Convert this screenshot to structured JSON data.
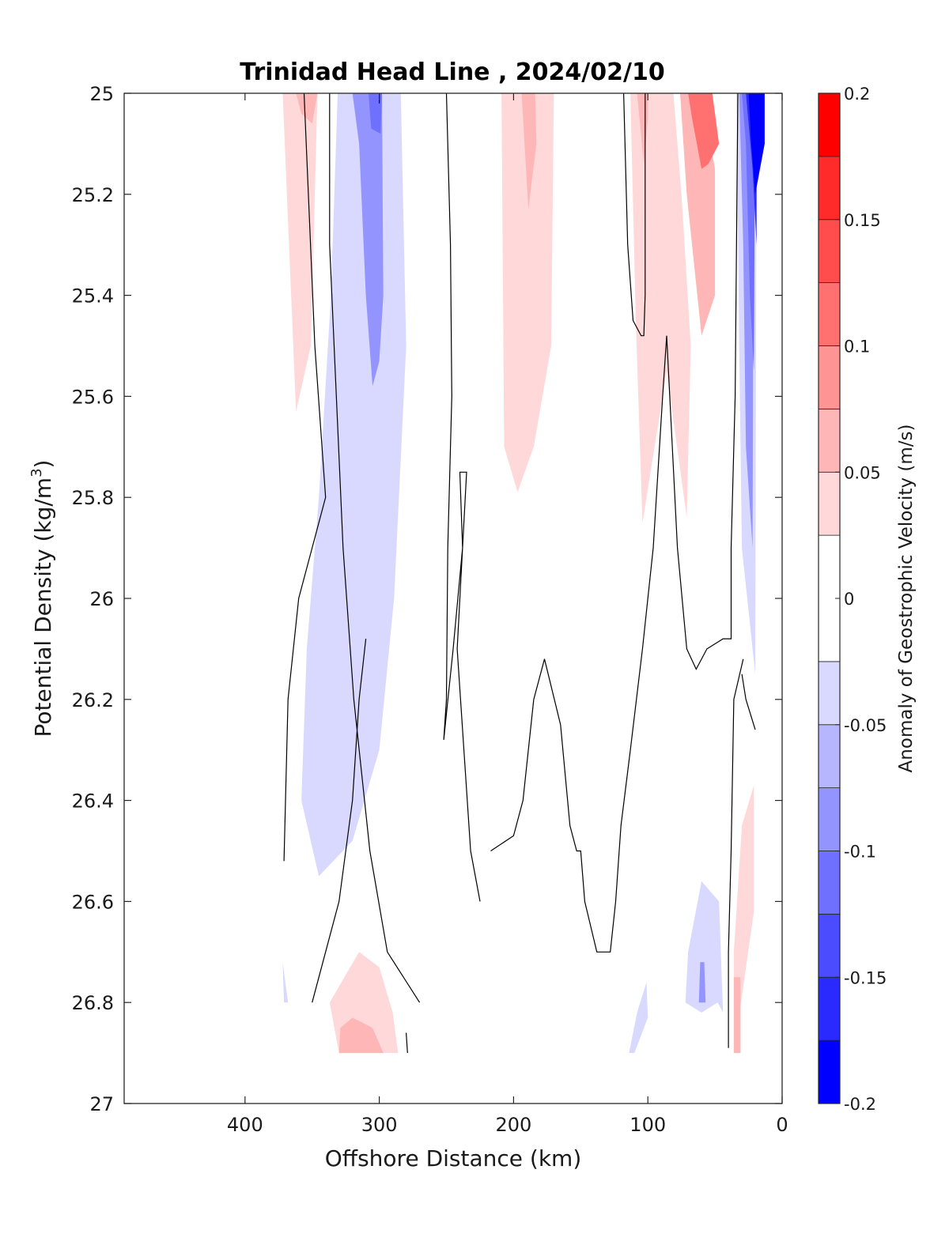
{
  "chart_data": {
    "type": "heatmap",
    "subtype": "filled-contour-section",
    "title": "Trinidad Head Line , 2024/02/10",
    "xlabel": "Offshore Distance (km)",
    "ylabel_main": "Potential Density (kg/m",
    "ylabel_sup": "3",
    "ylabel_close": ")",
    "x_reversed": true,
    "y_reversed": true,
    "xlim": [
      490,
      0
    ],
    "ylim": [
      25,
      27
    ],
    "x_ticks": [
      400,
      300,
      200,
      100,
      0
    ],
    "y_ticks": [
      25,
      25.2,
      25.4,
      25.6,
      25.8,
      26,
      26.2,
      26.4,
      26.6,
      26.8,
      27
    ],
    "y_tick_labels": [
      "25",
      "25.2",
      "25.4",
      "25.6",
      "25.8",
      "26",
      "26.2",
      "26.4",
      "26.6",
      "26.8",
      "27"
    ],
    "colorbar": {
      "label": "Anomaly of Geostrophic Velocity (m/s)",
      "range": [
        -0.2,
        0.2
      ],
      "levels": [
        -0.2,
        -0.175,
        -0.15,
        -0.125,
        -0.1,
        -0.075,
        -0.05,
        -0.025,
        0.025,
        0.05,
        0.075,
        0.1,
        0.125,
        0.15,
        0.175,
        0.2
      ],
      "colors": [
        "#0000ff",
        "#2a2aff",
        "#4c4cff",
        "#7070ff",
        "#9494ff",
        "#b6b6ff",
        "#d9d9ff",
        "#ffffff",
        "#ffd9d9",
        "#ffb6b6",
        "#ff9494",
        "#ff7070",
        "#ff4c4c",
        "#ff2a2a",
        "#ff0000"
      ],
      "ticks": [
        0.2,
        0.15,
        0.1,
        0.05,
        0,
        -0.05,
        -0.1,
        -0.15,
        -0.2
      ],
      "tick_labels": [
        "0.2",
        "0.15",
        "0.1",
        "0.05",
        "0",
        "-0.05",
        "-0.1",
        "-0.15",
        "-0.2"
      ]
    },
    "regions": [
      {
        "value": 0.04,
        "points": [
          [
            372,
            25
          ],
          [
            346,
            25
          ],
          [
            351,
            25.5
          ],
          [
            362,
            25.63
          ]
        ]
      },
      {
        "value": 0.07,
        "points": [
          [
            362,
            25
          ],
          [
            346,
            25
          ],
          [
            350,
            25.06
          ],
          [
            358,
            25.04
          ]
        ]
      },
      {
        "value": -0.04,
        "points": [
          [
            331,
            25
          ],
          [
            284,
            25
          ],
          [
            280,
            25.5
          ],
          [
            289,
            26
          ],
          [
            300,
            26.3
          ],
          [
            320,
            26.48
          ],
          [
            345,
            26.55
          ],
          [
            358,
            26.4
          ],
          [
            354,
            26.1
          ],
          [
            345,
            25.8
          ],
          [
            336,
            25.4
          ]
        ]
      },
      {
        "value": -0.08,
        "points": [
          [
            320,
            25
          ],
          [
            298,
            25
          ],
          [
            297,
            25.4
          ],
          [
            300,
            25.53
          ],
          [
            305,
            25.58
          ],
          [
            310,
            25.4
          ],
          [
            315,
            25.1
          ]
        ]
      },
      {
        "value": -0.11,
        "points": [
          [
            308,
            25
          ],
          [
            298,
            25
          ],
          [
            299,
            25.08
          ],
          [
            306,
            25.07
          ]
        ]
      },
      {
        "value": 0.04,
        "points": [
          [
            209,
            25
          ],
          [
            170,
            25
          ],
          [
            172,
            25.5
          ],
          [
            185,
            25.7
          ],
          [
            197,
            25.79
          ],
          [
            207,
            25.7
          ]
        ]
      },
      {
        "value": 0.07,
        "points": [
          [
            194,
            25
          ],
          [
            184,
            25
          ],
          [
            183,
            25.1
          ],
          [
            189,
            25.23
          ]
        ]
      },
      {
        "value": 0.04,
        "points": [
          [
            113,
            25
          ],
          [
            81,
            25
          ],
          [
            75,
            25.2
          ],
          [
            68,
            25.5
          ],
          [
            71,
            25.84
          ],
          [
            86,
            25.55
          ],
          [
            104,
            25.85
          ],
          [
            109,
            25.45
          ]
        ]
      },
      {
        "value": 0.07,
        "points": [
          [
            108,
            25
          ],
          [
            100,
            25
          ],
          [
            100,
            25.05
          ],
          [
            103,
            25.14
          ]
        ]
      },
      {
        "value": 0.07,
        "points": [
          [
            76,
            25
          ],
          [
            60,
            25
          ],
          [
            50,
            25.15
          ],
          [
            50,
            25.4
          ],
          [
            60,
            25.48
          ],
          [
            71,
            25.2
          ]
        ]
      },
      {
        "value": 0.1,
        "points": [
          [
            70,
            25
          ],
          [
            52,
            25
          ],
          [
            47,
            25.1
          ],
          [
            55,
            25.14
          ],
          [
            60,
            25.15
          ],
          [
            67,
            25.05
          ]
        ]
      },
      {
        "value": -0.04,
        "points": [
          [
            34,
            25
          ],
          [
            19,
            25
          ],
          [
            20,
            26.15
          ],
          [
            30,
            25.9
          ],
          [
            32,
            25.5
          ]
        ]
      },
      {
        "value": -0.08,
        "points": [
          [
            32,
            25
          ],
          [
            21,
            25
          ],
          [
            22,
            25.9
          ],
          [
            27,
            25.7
          ],
          [
            29,
            25.3
          ]
        ]
      },
      {
        "value": -0.12,
        "points": [
          [
            30,
            25
          ],
          [
            20,
            25
          ],
          [
            21,
            25.55
          ],
          [
            24,
            25.4
          ],
          [
            27,
            25.1
          ]
        ]
      },
      {
        "value": -0.16,
        "points": [
          [
            27,
            25
          ],
          [
            19,
            25
          ],
          [
            19,
            25.3
          ],
          [
            22,
            25.15
          ]
        ]
      },
      {
        "value": -0.19,
        "points": [
          [
            25,
            25
          ],
          [
            13,
            25
          ],
          [
            13,
            25.1
          ],
          [
            20,
            25.2
          ],
          [
            23,
            25.1
          ]
        ]
      },
      {
        "value": 0.04,
        "points": [
          [
            337,
            26.8
          ],
          [
            315,
            26.7
          ],
          [
            300,
            26.73
          ],
          [
            290,
            26.82
          ],
          [
            286,
            26.9
          ],
          [
            330,
            26.9
          ]
        ]
      },
      {
        "value": 0.07,
        "points": [
          [
            329,
            26.85
          ],
          [
            320,
            26.83
          ],
          [
            305,
            26.85
          ],
          [
            297,
            26.9
          ],
          [
            330,
            26.9
          ]
        ]
      },
      {
        "value": -0.04,
        "points": [
          [
            372,
            26.72
          ],
          [
            368,
            26.8
          ],
          [
            371,
            26.8
          ]
        ]
      },
      {
        "value": -0.04,
        "points": [
          [
            114,
            26.9
          ],
          [
            110,
            26.9
          ],
          [
            100,
            26.83
          ],
          [
            101,
            26.76
          ],
          [
            108,
            26.82
          ]
        ]
      },
      {
        "value": -0.04,
        "points": [
          [
            60,
            26.56
          ],
          [
            47,
            26.6
          ],
          [
            44,
            26.82
          ],
          [
            48,
            26.8
          ],
          [
            60,
            26.82
          ],
          [
            72,
            26.8
          ],
          [
            70,
            26.7
          ]
        ]
      },
      {
        "value": -0.08,
        "points": [
          [
            62,
            26.8
          ],
          [
            57,
            26.8
          ],
          [
            58,
            26.72
          ],
          [
            61,
            26.72
          ]
        ]
      },
      {
        "value": 0.04,
        "points": [
          [
            21,
            26.37
          ],
          [
            30,
            26.45
          ],
          [
            36,
            26.7
          ],
          [
            36,
            26.9
          ],
          [
            21,
            26.62
          ]
        ]
      },
      {
        "value": 0.07,
        "points": [
          [
            36,
            26.75
          ],
          [
            36,
            26.9
          ],
          [
            31,
            26.9
          ],
          [
            31,
            26.75
          ]
        ]
      }
    ],
    "zero_contours": [
      [
        [
          337,
          25
        ],
        [
          337,
          25.3
        ],
        [
          332,
          25.6
        ],
        [
          327,
          25.9
        ],
        [
          319,
          26.2
        ],
        [
          307,
          26.5
        ],
        [
          294,
          26.7
        ],
        [
          270,
          26.8
        ]
      ],
      [
        [
          356,
          25
        ],
        [
          348,
          25.5
        ],
        [
          340,
          25.8
        ],
        [
          350,
          25.9
        ],
        [
          360,
          26
        ],
        [
          368,
          26.2
        ],
        [
          371,
          26.52
        ]
      ],
      [
        [
          300,
          25
        ],
        [
          300,
          25.02
        ]
      ],
      [
        [
          250,
          25
        ],
        [
          247,
          25.3
        ],
        [
          246,
          25.6
        ],
        [
          249,
          25.9
        ],
        [
          250,
          26.2
        ],
        [
          252,
          26.28
        ],
        [
          245,
          26.1
        ],
        [
          238,
          25.9
        ],
        [
          240,
          25.75
        ],
        [
          235,
          25.75
        ],
        [
          242,
          26.1
        ],
        [
          232,
          26.5
        ],
        [
          225,
          26.6
        ]
      ],
      [
        [
          217,
          26.5
        ],
        [
          200,
          26.47
        ],
        [
          193,
          26.4
        ],
        [
          185,
          26.2
        ],
        [
          177,
          26.12
        ],
        [
          165,
          26.25
        ],
        [
          158,
          26.45
        ],
        [
          153,
          26.5
        ],
        [
          150,
          26.5
        ],
        [
          147,
          26.6
        ],
        [
          138,
          26.7
        ],
        [
          128,
          26.7
        ],
        [
          124,
          26.6
        ],
        [
          120,
          26.45
        ],
        [
          113,
          26.3
        ],
        [
          104,
          26.1
        ],
        [
          96,
          25.9
        ],
        [
          89,
          25.6
        ],
        [
          86,
          25.48
        ],
        [
          78,
          25.9
        ],
        [
          71,
          26.1
        ],
        [
          64,
          26.14
        ],
        [
          56,
          26.1
        ],
        [
          44,
          26.08
        ],
        [
          38,
          26.08
        ],
        [
          38,
          25.9
        ],
        [
          35,
          25.6
        ],
        [
          34,
          25.3
        ],
        [
          33,
          25
        ]
      ],
      [
        [
          118,
          25
        ],
        [
          115,
          25.3
        ],
        [
          111,
          25.45
        ],
        [
          105,
          25.48
        ],
        [
          103,
          25.48
        ],
        [
          102,
          25.4
        ],
        [
          102,
          25.2
        ],
        [
          102,
          25
        ]
      ],
      [
        [
          29,
          26.12
        ],
        [
          36,
          26.2
        ],
        [
          38,
          26.5
        ],
        [
          40,
          26.7
        ],
        [
          40,
          26.89
        ]
      ],
      [
        [
          310,
          26.08
        ],
        [
          315,
          26.2
        ],
        [
          320,
          26.4
        ],
        [
          330,
          26.6
        ],
        [
          350,
          26.8
        ]
      ],
      [
        [
          280,
          26.86
        ],
        [
          279,
          26.9
        ]
      ],
      [
        [
          20,
          26.26
        ],
        [
          27,
          26.2
        ],
        [
          30,
          26.15
        ]
      ]
    ]
  }
}
